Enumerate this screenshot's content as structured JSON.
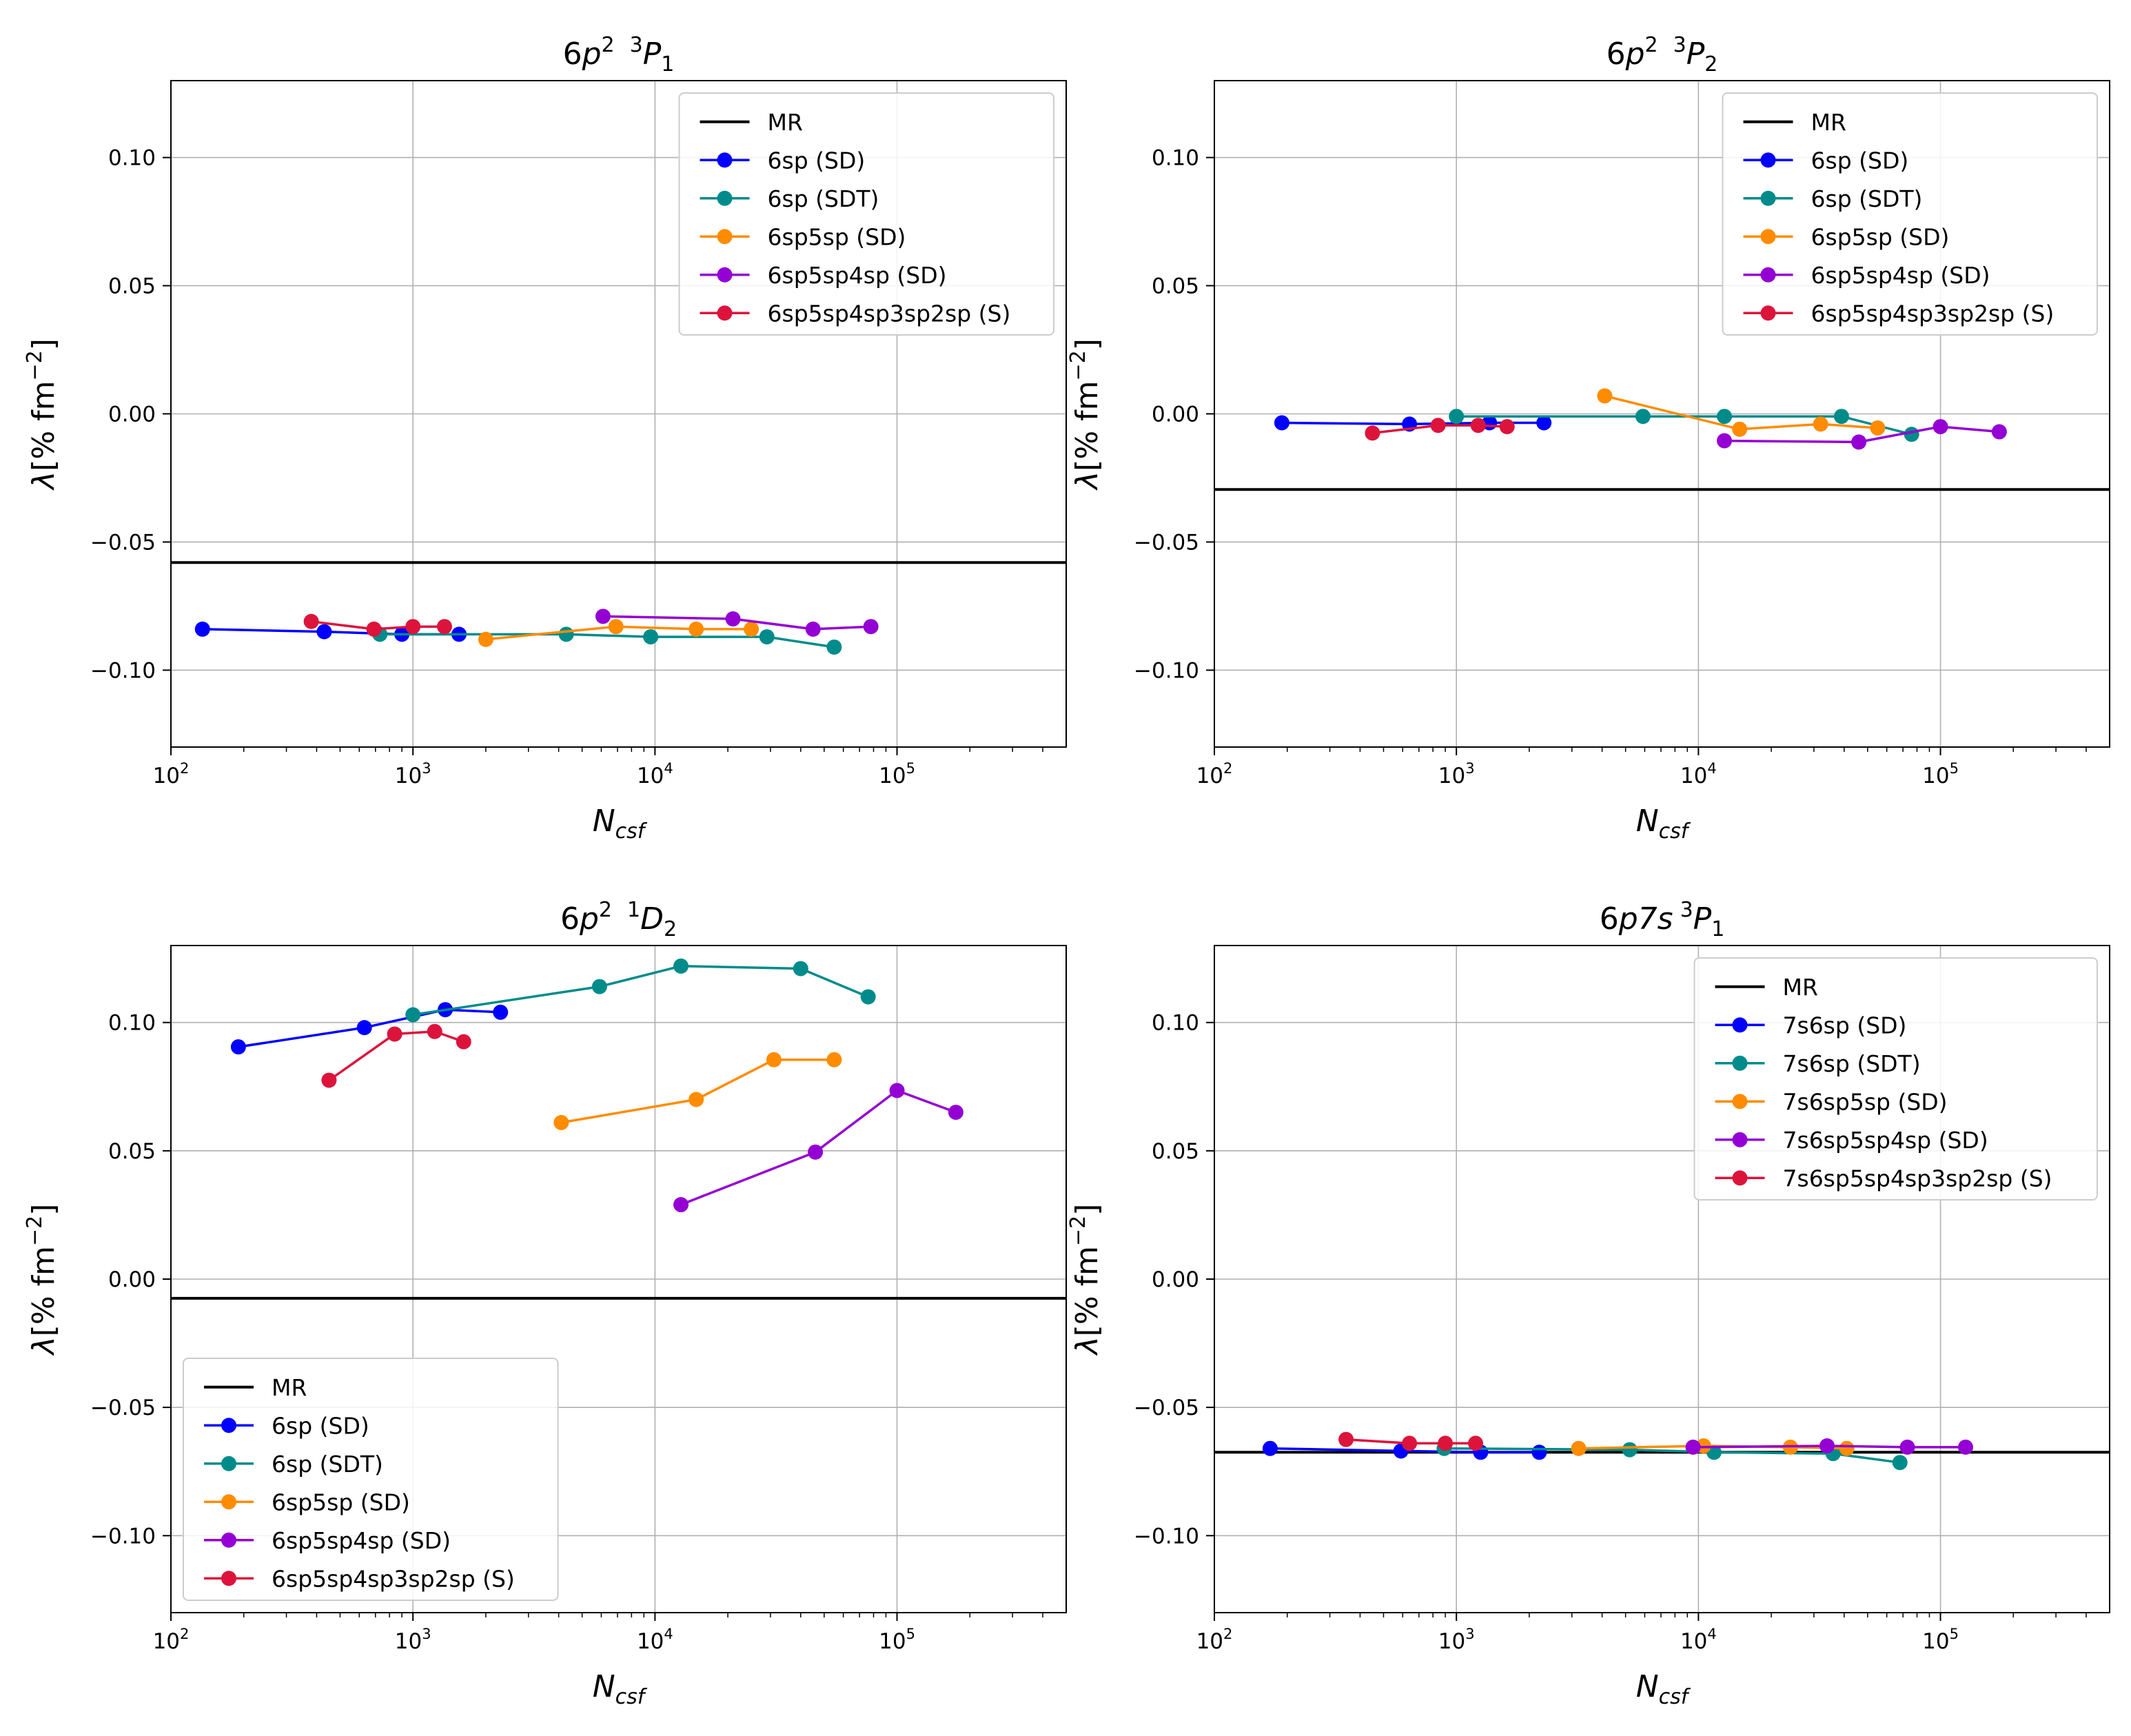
{
  "figure": {
    "background": "#ffffff"
  },
  "colors": {
    "MR": "#000000",
    "SD1": "#0000ff",
    "SDT": "#008b8b",
    "SD2": "#ff8c00",
    "SD3": "#9400d3",
    "S": "#dc143c",
    "grid": "#b0b0b0"
  },
  "chart_data": [
    {
      "type": "line",
      "title": {
        "prefix": "6",
        "a": "p",
        "sup": "2",
        "b": "3",
        "c": "P",
        "sub": "1",
        "d": ""
      },
      "xlabel": {
        "main": "N",
        "sub": "csf"
      },
      "ylabel": {
        "sym": "λ",
        "pre": "[% fm",
        "exp": "−2",
        "post": "]"
      },
      "xscale": "log",
      "xlim": [
        100,
        500000
      ],
      "ylim": [
        -0.13,
        0.13
      ],
      "xticks": [
        {
          "value": 100,
          "base": "10",
          "exp": "2"
        },
        {
          "value": 1000,
          "base": "10",
          "exp": "3"
        },
        {
          "value": 10000,
          "base": "10",
          "exp": "4"
        },
        {
          "value": 100000,
          "base": "10",
          "exp": "5"
        }
      ],
      "yticks": [
        {
          "value": 0.1,
          "label": "0.10"
        },
        {
          "value": 0.05,
          "label": "0.05"
        },
        {
          "value": 0.0,
          "label": "0.00"
        },
        {
          "value": -0.05,
          "label": "−0.05"
        },
        {
          "value": -0.1,
          "label": "−0.10"
        }
      ],
      "grid": true,
      "legend_position": "upper-right",
      "mr": {
        "name": "MR",
        "value": -0.058,
        "color": "#000000"
      },
      "series": [
        {
          "name": "6sp (SD)",
          "color": "#0000ff",
          "x": [
            135,
            430,
            900,
            1550
          ],
          "y": [
            -0.084,
            -0.085,
            -0.086,
            -0.086
          ]
        },
        {
          "name": "6sp (SDT)",
          "color": "#008b8b",
          "x": [
            730,
            4300,
            9600,
            29000,
            55000
          ],
          "y": [
            -0.086,
            -0.086,
            -0.087,
            -0.087,
            -0.091
          ]
        },
        {
          "name": "6sp5sp (SD)",
          "color": "#ff8c00",
          "x": [
            2000,
            6900,
            14800,
            25000
          ],
          "y": [
            -0.088,
            -0.083,
            -0.084,
            -0.084
          ]
        },
        {
          "name": "6sp5sp4sp (SD)",
          "color": "#9400d3",
          "x": [
            6100,
            21000,
            45000,
            78000
          ],
          "y": [
            -0.079,
            -0.08,
            -0.084,
            -0.083
          ]
        },
        {
          "name": "6sp5sp4sp3sp2sp (S)",
          "color": "#dc143c",
          "x": [
            380,
            690,
            1000,
            1350
          ],
          "y": [
            -0.081,
            -0.084,
            -0.083,
            -0.083
          ]
        }
      ]
    },
    {
      "type": "line",
      "title": {
        "prefix": "6",
        "a": "p",
        "sup": "2",
        "b": "3",
        "c": "P",
        "sub": "2",
        "d": ""
      },
      "xlabel": {
        "main": "N",
        "sub": "csf"
      },
      "ylabel": {
        "sym": "λ",
        "pre": "[% fm",
        "exp": "−2",
        "post": "]"
      },
      "xscale": "log",
      "xlim": [
        100,
        500000
      ],
      "ylim": [
        -0.13,
        0.13
      ],
      "xticks": [
        {
          "value": 100,
          "base": "10",
          "exp": "2"
        },
        {
          "value": 1000,
          "base": "10",
          "exp": "3"
        },
        {
          "value": 10000,
          "base": "10",
          "exp": "4"
        },
        {
          "value": 100000,
          "base": "10",
          "exp": "5"
        }
      ],
      "yticks": [
        {
          "value": 0.1,
          "label": "0.10"
        },
        {
          "value": 0.05,
          "label": "0.05"
        },
        {
          "value": 0.0,
          "label": "0.00"
        },
        {
          "value": -0.05,
          "label": "−0.05"
        },
        {
          "value": -0.1,
          "label": "−0.10"
        }
      ],
      "grid": true,
      "legend_position": "upper-right",
      "mr": {
        "name": "MR",
        "value": -0.0295,
        "color": "#000000"
      },
      "series": [
        {
          "name": "6sp (SD)",
          "color": "#0000ff",
          "x": [
            190,
            640,
            1370,
            2300
          ],
          "y": [
            -0.0035,
            -0.004,
            -0.0035,
            -0.0035
          ]
        },
        {
          "name": "6sp (SDT)",
          "color": "#008b8b",
          "x": [
            1000,
            5900,
            12800,
            39000,
            76000
          ],
          "y": [
            -0.001,
            -0.001,
            -0.001,
            -0.001,
            -0.008
          ]
        },
        {
          "name": "6sp5sp (SD)",
          "color": "#ff8c00",
          "x": [
            4100,
            14800,
            32000,
            55000
          ],
          "y": [
            0.007,
            -0.006,
            -0.004,
            -0.0055
          ]
        },
        {
          "name": "6sp5sp4sp (SD)",
          "color": "#9400d3",
          "x": [
            12800,
            46000,
            100000,
            175000
          ],
          "y": [
            -0.0105,
            -0.011,
            -0.005,
            -0.007
          ]
        },
        {
          "name": "6sp5sp4sp3sp2sp (S)",
          "color": "#dc143c",
          "x": [
            450,
            840,
            1230,
            1620
          ],
          "y": [
            -0.0075,
            -0.0045,
            -0.0045,
            -0.005
          ]
        }
      ]
    },
    {
      "type": "line",
      "title": {
        "prefix": "6",
        "a": "p",
        "sup": "2",
        "b": "1",
        "c": "D",
        "sub": "2",
        "d": ""
      },
      "xlabel": {
        "main": "N",
        "sub": "csf"
      },
      "ylabel": {
        "sym": "λ",
        "pre": "[% fm",
        "exp": "−2",
        "post": "]"
      },
      "xscale": "log",
      "xlim": [
        100,
        500000
      ],
      "ylim": [
        -0.13,
        0.13
      ],
      "xticks": [
        {
          "value": 100,
          "base": "10",
          "exp": "2"
        },
        {
          "value": 1000,
          "base": "10",
          "exp": "3"
        },
        {
          "value": 10000,
          "base": "10",
          "exp": "4"
        },
        {
          "value": 100000,
          "base": "10",
          "exp": "5"
        }
      ],
      "yticks": [
        {
          "value": 0.1,
          "label": "0.10"
        },
        {
          "value": 0.05,
          "label": "0.05"
        },
        {
          "value": 0.0,
          "label": "0.00"
        },
        {
          "value": -0.05,
          "label": "−0.05"
        },
        {
          "value": -0.1,
          "label": "−0.10"
        }
      ],
      "grid": true,
      "legend_position": "lower-left",
      "mr": {
        "name": "MR",
        "value": -0.0075,
        "color": "#000000"
      },
      "series": [
        {
          "name": "6sp (SD)",
          "color": "#0000ff",
          "x": [
            190,
            630,
            1360,
            2300
          ],
          "y": [
            0.0905,
            0.098,
            0.105,
            0.104
          ]
        },
        {
          "name": "6sp (SDT)",
          "color": "#008b8b",
          "x": [
            1000,
            5900,
            12800,
            40000,
            76000
          ],
          "y": [
            0.103,
            0.114,
            0.122,
            0.121,
            0.11
          ]
        },
        {
          "name": "6sp5sp (SD)",
          "color": "#ff8c00",
          "x": [
            4100,
            14800,
            31000,
            55000
          ],
          "y": [
            0.061,
            0.07,
            0.0855,
            0.0855
          ]
        },
        {
          "name": "6sp5sp4sp (SD)",
          "color": "#9400d3",
          "x": [
            12800,
            46000,
            100000,
            175000
          ],
          "y": [
            0.029,
            0.0495,
            0.0735,
            0.065
          ]
        },
        {
          "name": "6sp5sp4sp3sp2sp (S)",
          "color": "#dc143c",
          "x": [
            450,
            840,
            1230,
            1620
          ],
          "y": [
            0.0775,
            0.0955,
            0.0965,
            0.0925
          ]
        }
      ]
    },
    {
      "type": "line",
      "title": {
        "prefix": "6",
        "a": "p",
        "sup": "",
        "b": "",
        "c": "",
        "sub": "1",
        "d": "7s",
        "e": "3",
        "f": "P"
      },
      "xlabel": {
        "main": "N",
        "sub": "csf"
      },
      "ylabel": {
        "sym": "λ",
        "pre": "[% fm",
        "exp": "−2",
        "post": "]"
      },
      "xscale": "log",
      "xlim": [
        100,
        500000
      ],
      "ylim": [
        -0.13,
        0.13
      ],
      "xticks": [
        {
          "value": 100,
          "base": "10",
          "exp": "2"
        },
        {
          "value": 1000,
          "base": "10",
          "exp": "3"
        },
        {
          "value": 10000,
          "base": "10",
          "exp": "4"
        },
        {
          "value": 100000,
          "base": "10",
          "exp": "5"
        }
      ],
      "yticks": [
        {
          "value": 0.1,
          "label": "0.10"
        },
        {
          "value": 0.05,
          "label": "0.05"
        },
        {
          "value": 0.0,
          "label": "0.00"
        },
        {
          "value": -0.05,
          "label": "−0.05"
        },
        {
          "value": -0.1,
          "label": "−0.10"
        }
      ],
      "grid": true,
      "legend_position": "upper-right",
      "mr": {
        "name": "MR",
        "value": -0.0675,
        "color": "#000000"
      },
      "series": [
        {
          "name": "7s6sp (SD)",
          "color": "#0000ff",
          "x": [
            170,
            590,
            1260,
            2200
          ],
          "y": [
            -0.066,
            -0.067,
            -0.0675,
            -0.0675
          ]
        },
        {
          "name": "7s6sp (SDT)",
          "color": "#008b8b",
          "x": [
            890,
            5200,
            11600,
            36000,
            68000
          ],
          "y": [
            -0.066,
            -0.0665,
            -0.0675,
            -0.068,
            -0.0715
          ]
        },
        {
          "name": "7s6sp5sp (SD)",
          "color": "#ff8c00",
          "x": [
            3200,
            10500,
            24000,
            41000
          ],
          "y": [
            -0.066,
            -0.065,
            -0.0655,
            -0.066
          ]
        },
        {
          "name": "7s6sp5sp4sp (SD)",
          "color": "#9400d3",
          "x": [
            9500,
            34000,
            73000,
            127000
          ],
          "y": [
            -0.0655,
            -0.065,
            -0.0655,
            -0.0655
          ]
        },
        {
          "name": "7s6sp5sp4sp3sp2sp (S)",
          "color": "#dc143c",
          "x": [
            350,
            640,
            900,
            1200
          ],
          "y": [
            -0.0625,
            -0.064,
            -0.064,
            -0.064
          ]
        }
      ]
    }
  ]
}
